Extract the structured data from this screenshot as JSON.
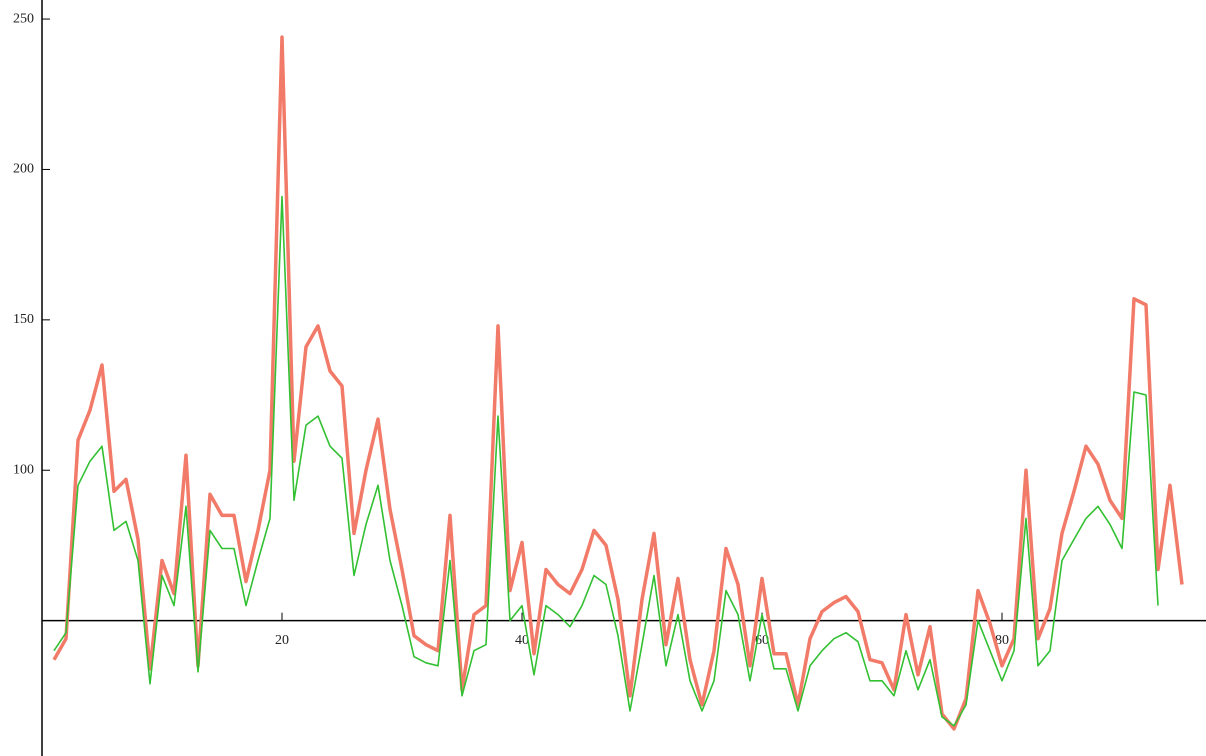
{
  "chart_data": {
    "type": "line",
    "x": [
      1,
      2,
      3,
      4,
      5,
      6,
      7,
      8,
      9,
      10,
      11,
      12,
      13,
      14,
      15,
      16,
      17,
      18,
      19,
      20,
      21,
      22,
      23,
      24,
      25,
      26,
      27,
      28,
      29,
      30,
      31,
      32,
      33,
      34,
      35,
      36,
      37,
      38,
      39,
      40,
      41,
      42,
      43,
      44,
      45,
      46,
      47,
      48,
      49,
      50,
      51,
      52,
      53,
      54,
      55,
      56,
      57,
      58,
      59,
      60,
      61,
      62,
      63,
      64,
      65,
      66,
      67,
      68,
      69,
      70,
      71,
      72,
      73,
      74,
      75,
      76,
      77,
      78,
      79,
      80,
      81,
      82,
      83,
      84,
      85,
      86,
      87,
      88,
      89,
      90,
      91,
      92,
      93,
      94,
      95
    ],
    "series": [
      {
        "color": "#f27a68",
        "values": [
          37,
          44,
          110,
          120,
          135,
          93,
          97,
          77,
          34,
          70,
          59,
          105,
          35,
          92,
          85,
          85,
          63,
          80,
          100,
          244,
          103,
          141,
          148,
          133,
          128,
          79,
          100,
          117,
          87,
          67,
          45,
          42,
          40,
          85,
          27,
          52,
          55,
          148,
          60,
          76,
          39,
          67,
          62,
          59,
          67,
          80,
          75,
          57,
          25,
          57,
          79,
          42,
          64,
          37,
          22,
          40,
          74,
          62,
          35,
          64,
          39,
          39,
          22,
          44,
          53,
          56,
          58,
          53,
          37,
          36,
          27,
          52,
          32,
          48,
          19,
          14,
          24,
          60,
          49,
          35,
          44,
          100,
          44,
          54,
          79,
          93,
          108,
          102,
          90,
          84,
          157,
          155,
          67,
          95,
          62
        ]
      },
      {
        "color": "#33c033",
        "values": [
          40,
          46,
          95,
          103,
          108,
          80,
          83,
          70,
          29,
          65,
          55,
          88,
          33,
          80,
          74,
          74,
          55,
          70,
          84,
          191,
          90,
          115,
          118,
          108,
          104,
          65,
          82,
          95,
          70,
          55,
          38,
          36,
          35,
          70,
          25,
          40,
          42,
          118,
          50,
          55,
          32,
          55,
          52,
          48,
          55,
          65,
          62,
          45,
          20,
          42,
          65,
          35,
          52,
          30,
          20,
          30,
          60,
          52,
          30,
          52,
          34,
          34,
          20,
          35,
          40,
          44,
          46,
          43,
          30,
          30,
          25,
          40,
          27,
          37,
          18,
          15,
          22,
          50,
          40,
          30,
          40,
          84,
          35,
          40,
          70,
          77,
          84,
          88,
          82,
          74,
          126,
          125,
          55,
          null,
          null
        ]
      }
    ],
    "xlim": [
      0,
      97
    ],
    "ylim": [
      5,
      256
    ],
    "xticks": [
      20,
      40,
      60,
      80
    ],
    "yticks": [
      100,
      150,
      200,
      250
    ],
    "x_axis_at": 50
  }
}
